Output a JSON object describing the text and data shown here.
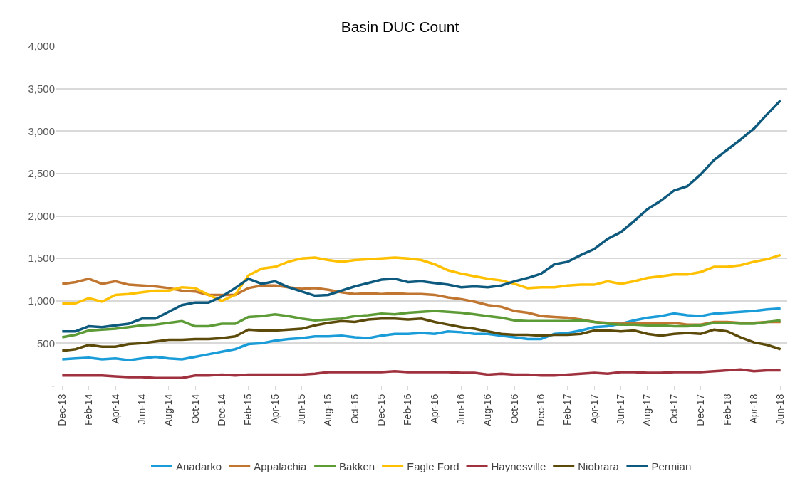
{
  "chart_data": {
    "type": "line",
    "title": "Basin DUC Count",
    "categories": [
      "Dec-13",
      null,
      "Feb-14",
      null,
      "Apr-14",
      null,
      "Jun-14",
      null,
      "Aug-14",
      null,
      "Oct-14",
      null,
      "Dec-14",
      null,
      "Feb-15",
      null,
      "Apr-15",
      null,
      "Jun-15",
      null,
      "Aug-15",
      null,
      "Oct-15",
      null,
      "Dec-15",
      null,
      "Feb-16",
      null,
      "Apr-16",
      null,
      "Jun-16",
      null,
      "Aug-16",
      null,
      "Oct-16",
      null,
      "Dec-16",
      null,
      "Feb-17",
      null,
      "Apr-17",
      null,
      "Jun-17",
      null,
      "Aug-17",
      null,
      "Oct-17",
      null,
      "Dec-17",
      null,
      "Feb-18",
      null,
      "Apr-18",
      null,
      "Jun-18"
    ],
    "series": [
      {
        "name": "Anadarko",
        "color": "#1a9cd8",
        "values": [
          310,
          320,
          330,
          310,
          320,
          300,
          320,
          340,
          320,
          310,
          340,
          370,
          400,
          430,
          490,
          500,
          530,
          550,
          560,
          580,
          580,
          590,
          570,
          560,
          590,
          610,
          610,
          620,
          610,
          640,
          630,
          610,
          610,
          590,
          570,
          550,
          550,
          610,
          620,
          650,
          690,
          700,
          730,
          770,
          800,
          820,
          850,
          830,
          820,
          850,
          860,
          870,
          880,
          900,
          910
        ]
      },
      {
        "name": "Appalachia",
        "color": "#c07530",
        "values": [
          1200,
          1220,
          1260,
          1200,
          1230,
          1190,
          1180,
          1170,
          1150,
          1120,
          1110,
          1070,
          1070,
          1070,
          1150,
          1180,
          1180,
          1160,
          1140,
          1150,
          1130,
          1100,
          1080,
          1090,
          1080,
          1090,
          1080,
          1080,
          1070,
          1040,
          1020,
          990,
          950,
          930,
          880,
          860,
          820,
          810,
          800,
          780,
          750,
          740,
          730,
          740,
          740,
          740,
          740,
          720,
          720,
          750,
          750,
          740,
          740,
          750,
          750
        ]
      },
      {
        "name": "Bakken",
        "color": "#5d9b36",
        "values": [
          570,
          600,
          650,
          660,
          670,
          690,
          710,
          720,
          740,
          760,
          700,
          700,
          730,
          730,
          810,
          820,
          840,
          820,
          790,
          770,
          780,
          790,
          820,
          830,
          850,
          840,
          860,
          870,
          880,
          870,
          860,
          840,
          820,
          800,
          770,
          760,
          760,
          760,
          760,
          770,
          750,
          730,
          720,
          720,
          710,
          710,
          700,
          700,
          710,
          740,
          740,
          730,
          730,
          750,
          770
        ]
      },
      {
        "name": "Eagle Ford",
        "color": "#ffc000",
        "values": [
          970,
          970,
          1030,
          990,
          1070,
          1080,
          1100,
          1120,
          1120,
          1160,
          1150,
          1070,
          1000,
          1070,
          1300,
          1380,
          1400,
          1460,
          1500,
          1510,
          1480,
          1460,
          1480,
          1490,
          1500,
          1510,
          1500,
          1480,
          1430,
          1360,
          1320,
          1290,
          1260,
          1240,
          1200,
          1150,
          1160,
          1160,
          1180,
          1190,
          1190,
          1230,
          1200,
          1230,
          1270,
          1290,
          1310,
          1310,
          1340,
          1400,
          1400,
          1420,
          1460,
          1490,
          1540
        ]
      },
      {
        "name": "Haynesville",
        "color": "#a0323f",
        "values": [
          120,
          120,
          120,
          120,
          110,
          100,
          100,
          90,
          90,
          90,
          120,
          120,
          130,
          120,
          130,
          130,
          130,
          130,
          130,
          140,
          160,
          160,
          160,
          160,
          160,
          170,
          160,
          160,
          160,
          160,
          150,
          150,
          130,
          140,
          130,
          130,
          120,
          120,
          130,
          140,
          150,
          140,
          160,
          160,
          150,
          150,
          160,
          160,
          160,
          170,
          180,
          190,
          170,
          180,
          180
        ]
      },
      {
        "name": "Niobrara",
        "color": "#5c4a0a",
        "values": [
          410,
          430,
          480,
          460,
          460,
          490,
          500,
          520,
          540,
          540,
          550,
          550,
          560,
          580,
          660,
          650,
          650,
          660,
          670,
          710,
          740,
          760,
          750,
          780,
          790,
          790,
          780,
          790,
          750,
          720,
          690,
          670,
          640,
          610,
          600,
          600,
          590,
          600,
          600,
          610,
          650,
          650,
          640,
          650,
          610,
          590,
          610,
          620,
          610,
          660,
          640,
          570,
          510,
          480,
          430
        ]
      },
      {
        "name": "Permian",
        "color": "#0e5a7e",
        "values": [
          640,
          640,
          700,
          690,
          710,
          730,
          790,
          790,
          870,
          950,
          980,
          980,
          1050,
          1150,
          1260,
          1200,
          1230,
          1160,
          1110,
          1060,
          1070,
          1120,
          1170,
          1210,
          1250,
          1260,
          1220,
          1230,
          1210,
          1190,
          1160,
          1170,
          1160,
          1180,
          1230,
          1270,
          1320,
          1430,
          1460,
          1540,
          1610,
          1730,
          1810,
          1940,
          2080,
          2180,
          2300,
          2350,
          2490,
          2660,
          2780,
          2900,
          3030,
          3200,
          3360
        ]
      }
    ],
    "ylim": [
      0,
      4000
    ],
    "yticks": [
      {
        "value": 0,
        "label": "-"
      },
      500,
      {
        "value": 1000,
        "label": "1,000"
      },
      {
        "value": 1500,
        "label": "1,500"
      },
      {
        "value": 2000,
        "label": "2,000"
      },
      {
        "value": 2500,
        "label": "2,500"
      },
      {
        "value": 3000,
        "label": "3,000"
      },
      {
        "value": 3500,
        "label": "3,500"
      },
      {
        "value": 4000,
        "label": "4,000"
      }
    ],
    "grid": "y",
    "legend": "bottom",
    "marker": "none",
    "line_style": "solid"
  }
}
